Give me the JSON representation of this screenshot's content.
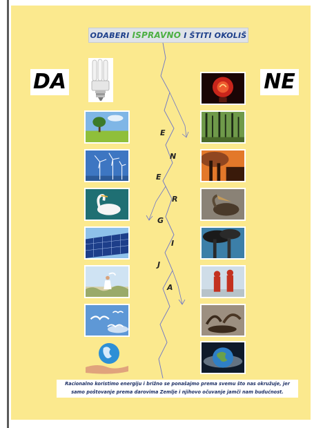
{
  "title": {
    "part1": "ODABERI",
    "highlight": "ISPRAVNO",
    "part2": "I ŠTITI OKOLIŠ"
  },
  "yes_label": "DA",
  "no_label": "NE",
  "vertical_word": [
    "E",
    "N",
    "E",
    "R",
    "G",
    "I",
    "J",
    "A"
  ],
  "left_images": [
    "bulb-icon",
    "tree-field-photo",
    "wind-turbines-photo",
    "swan-photo",
    "solar-panels-photo",
    "girl-beach-photo",
    "flying-birds-photo",
    "globe-in-hand-photo"
  ],
  "right_images": [
    "light-bulb-photo",
    "dead-forest-photo",
    "factory-smoke-photo",
    "oiled-pelican-photo",
    "smokestacks-photo",
    "hazmat-workers-photo",
    "oiled-birds-photo",
    "flooded-earth-photo"
  ],
  "footer": {
    "line1": "Racionalno koristimo energiju i brižno se ponašajmo prema svemu što nas okružuje, jer",
    "line2": "samo poštovanje prema darovima Zemlje i njihovo očuvanje jamči nam budućnost."
  },
  "colors": {
    "poster_background": "#fbe98e",
    "title_text": "#1d3f8a",
    "title_highlight": "#4db043"
  }
}
